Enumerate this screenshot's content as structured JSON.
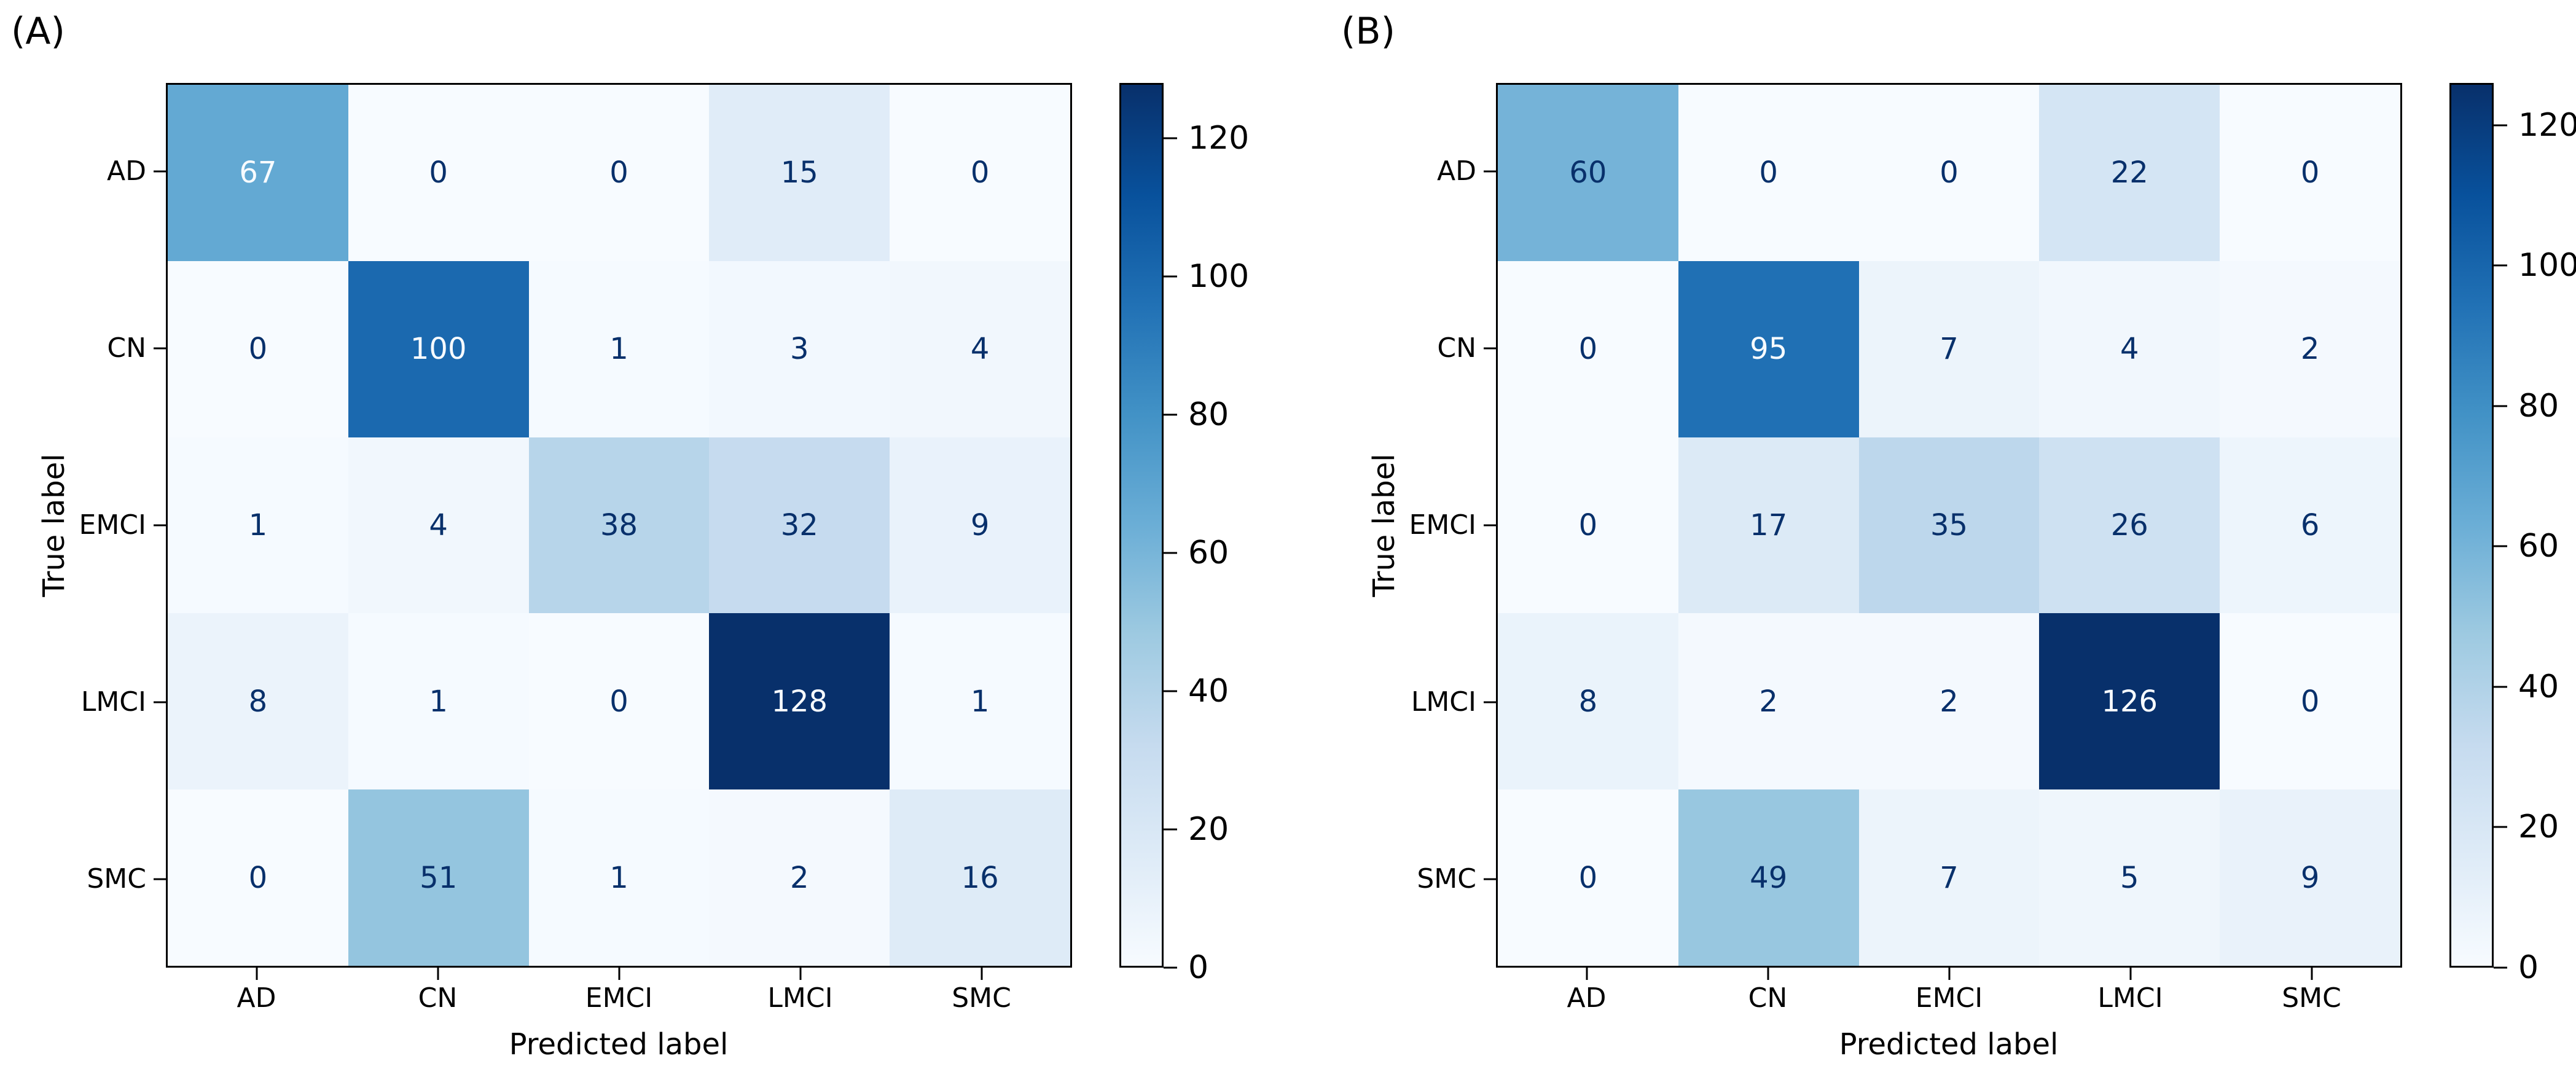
{
  "figure": {
    "background": "#ffffff",
    "panels": [
      {
        "label": "(A)"
      },
      {
        "label": "(B)"
      }
    ]
  },
  "chart_data": [
    {
      "type": "heatmap",
      "title": "(A)",
      "xlabel": "Predicted label",
      "ylabel": "True label",
      "categories": [
        "AD",
        "CN",
        "EMCI",
        "LMCI",
        "SMC"
      ],
      "matrix": [
        [
          67,
          0,
          0,
          15,
          0
        ],
        [
          0,
          100,
          1,
          3,
          4
        ],
        [
          1,
          4,
          38,
          32,
          9
        ],
        [
          8,
          1,
          0,
          128,
          1
        ],
        [
          0,
          51,
          1,
          2,
          16
        ]
      ],
      "vmin": 0,
      "vmax": 128,
      "colorbar_ticks": [
        0,
        20,
        40,
        60,
        80,
        100,
        120
      ],
      "colormap": "Blues",
      "legend_position": "right-colorbar",
      "grid": false
    },
    {
      "type": "heatmap",
      "title": "(B)",
      "xlabel": "Predicted label",
      "ylabel": "True label",
      "categories": [
        "AD",
        "CN",
        "EMCI",
        "LMCI",
        "SMC"
      ],
      "matrix": [
        [
          60,
          0,
          0,
          22,
          0
        ],
        [
          0,
          95,
          7,
          4,
          2
        ],
        [
          0,
          17,
          35,
          26,
          6
        ],
        [
          8,
          2,
          2,
          126,
          0
        ],
        [
          0,
          49,
          7,
          5,
          9
        ]
      ],
      "vmin": 0,
      "vmax": 126,
      "colorbar_ticks": [
        0,
        20,
        40,
        60,
        80,
        100,
        120
      ],
      "colormap": "Blues",
      "legend_position": "right-colorbar",
      "grid": false
    }
  ],
  "colors": {
    "colormap_stops": [
      "#f7fbff",
      "#deebf7",
      "#c6dbef",
      "#9ecae1",
      "#6baed6",
      "#4292c6",
      "#2171b5",
      "#08519c",
      "#08306b"
    ],
    "cell_text_dark": "#08306b",
    "cell_text_light": "#f7fbff",
    "axis_color": "#000000"
  }
}
